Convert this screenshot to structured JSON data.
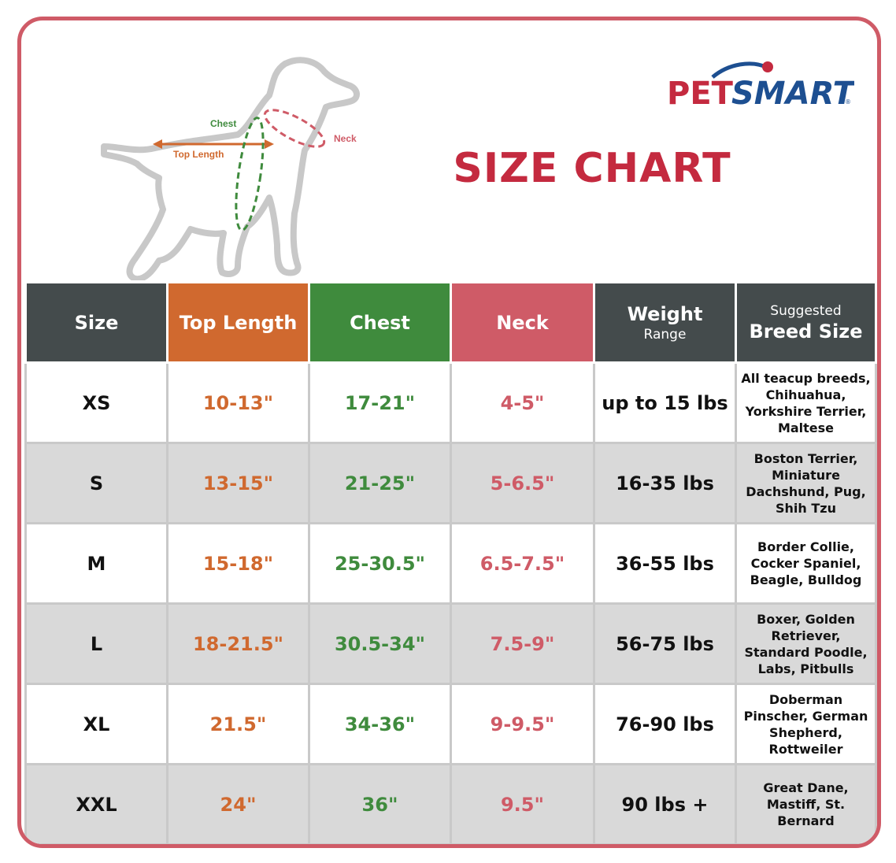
{
  "brand": {
    "logo_pet": "PET",
    "logo_smart": "SMART",
    "trademark": "®"
  },
  "title": "SIZE CHART",
  "diagram": {
    "chest_label": "Chest",
    "top_length_label": "Top Length",
    "neck_label": "Neck"
  },
  "colors": {
    "border": "#cf5b67",
    "title": "#c42a3f",
    "top_length": "#d0692f",
    "chest": "#3f8b3d",
    "neck": "#cf5b67",
    "header_dark": "#444b4c",
    "row_alt": "#d9d9d9"
  },
  "headers": {
    "size": "Size",
    "top_length": "Top Length",
    "chest": "Chest",
    "neck": "Neck",
    "weight": "Weight",
    "weight_sub": "Range",
    "breed_sub": "Suggested",
    "breed": "Breed Size"
  },
  "rows": [
    {
      "size": "XS",
      "top_length": "10-13\"",
      "chest": "17-21\"",
      "neck": "4-5\"",
      "weight": "up to 15 lbs",
      "breed": "All teacup breeds, Chihuahua, Yorkshire Terrier, Maltese"
    },
    {
      "size": "S",
      "top_length": "13-15\"",
      "chest": "21-25\"",
      "neck": "5-6.5\"",
      "weight": "16-35 lbs",
      "breed": "Boston Terrier, Miniature Dachshund, Pug, Shih Tzu"
    },
    {
      "size": "M",
      "top_length": "15-18\"",
      "chest": "25-30.5\"",
      "neck": "6.5-7.5\"",
      "weight": "36-55 lbs",
      "breed": "Border Collie, Cocker Spaniel, Beagle, Bulldog"
    },
    {
      "size": "L",
      "top_length": "18-21.5\"",
      "chest": "30.5-34\"",
      "neck": "7.5-9\"",
      "weight": "56-75 lbs",
      "breed": "Boxer, Golden Retriever, Standard Poodle, Labs, Pitbulls"
    },
    {
      "size": "XL",
      "top_length": "21.5\"",
      "chest": "34-36\"",
      "neck": "9-9.5\"",
      "weight": "76-90 lbs",
      "breed": "Doberman Pinscher, German Shepherd, Rottweiler"
    },
    {
      "size": "XXL",
      "top_length": "24\"",
      "chest": "36\"",
      "neck": "9.5\"",
      "weight": "90 lbs +",
      "breed": "Great Dane, Mastiff, St. Bernard"
    }
  ]
}
